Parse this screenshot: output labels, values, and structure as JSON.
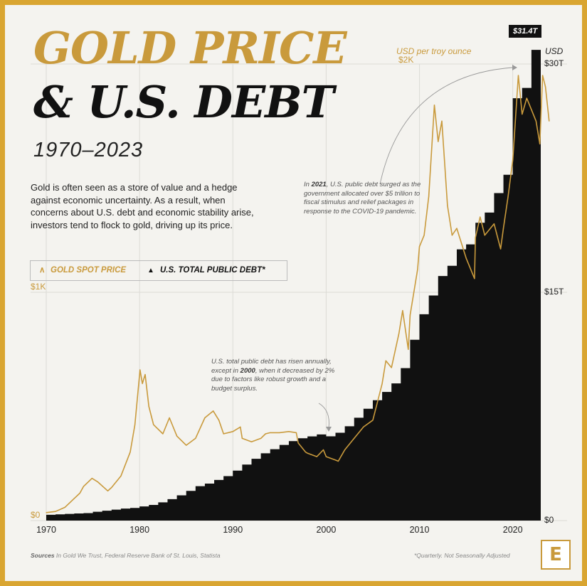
{
  "title": {
    "line1": "GOLD PRICE",
    "line2": "& U.S. DEBT",
    "years": "1970–2023"
  },
  "intro": "Gold is often seen as a store of value and a hedge against economic uncertainty. As a result, when concerns about U.S. debt and economic stability arise, investors tend to flock to gold, driving up its price.",
  "legend": {
    "gold_label": "GOLD SPOT PRICE",
    "gold_icon": "caret-up-icon",
    "debt_label": "U.S. TOTAL PUBLIC DEBT*",
    "debt_icon": "triangle-up-icon"
  },
  "annotations": {
    "note_2021_year": "2021",
    "note_2021": "In 2021, U.S. public debt surged as the government allocated over $5 trillion to fiscal stimulus and relief packages in response to the COVID-19 pandemic.",
    "note_2000_year": "2000",
    "note_2000": "U.S. total public debt has risen annually, except in 2000, when it decreased by 2% due to factors like robust growth and a budget surplus.",
    "callout_value": "$31.4T"
  },
  "footer": {
    "sources_label": "Sources",
    "sources_text": "In Gold We Trust, Federal Reserve Bank of St. Louis, Statista",
    "footnote": "*Quarterly. Not Seasonally Adjusted",
    "logo_letter": "E"
  },
  "colors": {
    "gold": "#c99a3c",
    "debt": "#111111",
    "background": "#f4f3ef",
    "border": "#d9a531"
  },
  "chart_data": {
    "type": "area",
    "x_unit": "year",
    "xlim": [
      1970,
      2023
    ],
    "x_ticks": [
      "1970",
      "1980",
      "1990",
      "2000",
      "2010",
      "2020"
    ],
    "y_left": {
      "unit": "USD per troy ounce",
      "ticks": [
        "$0",
        "$1K",
        "$2K"
      ],
      "range": [
        0,
        2000
      ]
    },
    "y_right": {
      "unit": "USD",
      "ticks": [
        "$0",
        "$15T",
        "$30T"
      ],
      "range": [
        0,
        30
      ]
    },
    "series": [
      {
        "name": "GOLD SPOT PRICE",
        "type": "line",
        "axis": "left",
        "color": "#c99a3c",
        "x": [
          1970,
          1971,
          1972,
          1973,
          1973.6,
          1974,
          1974.9,
          1975.5,
          1976.6,
          1977,
          1978,
          1979,
          1979.5,
          1980.05,
          1980.3,
          1980.6,
          1981,
          1981.5,
          1982.5,
          1983.2,
          1984,
          1985,
          1986,
          1987,
          1987.9,
          1988.5,
          1989,
          1990,
          1990.8,
          1991,
          1992,
          1993,
          1993.5,
          1994,
          1995,
          1996,
          1996.8,
          1997,
          1997.8,
          1998,
          1999,
          1999.7,
          2000,
          2001,
          2001.3,
          2002,
          2003,
          2004,
          2005,
          2006,
          2006.4,
          2007,
          2007.8,
          2008.2,
          2008.8,
          2009,
          2009.8,
          2010,
          2010.5,
          2011,
          2011.6,
          2012,
          2012.4,
          2013,
          2013.5,
          2014,
          2015,
          2015.9,
          2016,
          2016.5,
          2017,
          2018,
          2018.7,
          2019,
          2019.5,
          2020,
          2020.6,
          2021,
          2021.5,
          2022,
          2022.5,
          2022.9,
          2023.2,
          2023.5,
          2023.9
        ],
        "y": [
          35,
          40,
          58,
          97,
          120,
          150,
          185,
          170,
          130,
          145,
          195,
          300,
          420,
          660,
          600,
          640,
          500,
          420,
          380,
          450,
          370,
          330,
          360,
          450,
          480,
          440,
          380,
          390,
          410,
          360,
          345,
          360,
          380,
          385,
          385,
          390,
          385,
          340,
          300,
          295,
          280,
          310,
          280,
          265,
          260,
          310,
          360,
          410,
          440,
          600,
          700,
          670,
          820,
          920,
          750,
          900,
          1100,
          1200,
          1250,
          1420,
          1820,
          1660,
          1750,
          1380,
          1250,
          1280,
          1150,
          1060,
          1240,
          1330,
          1250,
          1300,
          1190,
          1280,
          1420,
          1580,
          1950,
          1780,
          1850,
          1800,
          1750,
          1650,
          1950,
          1900,
          1750
        ]
      },
      {
        "name": "U.S. TOTAL PUBLIC DEBT*",
        "type": "step-area",
        "axis": "right",
        "color": "#111111",
        "x": [
          1970,
          1971,
          1972,
          1973,
          1974,
          1975,
          1976,
          1977,
          1978,
          1979,
          1980,
          1981,
          1982,
          1983,
          1984,
          1985,
          1986,
          1987,
          1988,
          1989,
          1990,
          1991,
          1992,
          1993,
          1994,
          1995,
          1996,
          1997,
          1998,
          1999,
          2000,
          2001,
          2002,
          2003,
          2004,
          2005,
          2006,
          2007,
          2008,
          2009,
          2010,
          2011,
          2012,
          2013,
          2014,
          2015,
          2016,
          2017,
          2018,
          2019,
          2020,
          2021,
          2022,
          2023
        ],
        "y": [
          0.38,
          0.41,
          0.44,
          0.47,
          0.49,
          0.58,
          0.65,
          0.72,
          0.79,
          0.83,
          0.93,
          1.03,
          1.2,
          1.41,
          1.66,
          1.95,
          2.26,
          2.43,
          2.67,
          2.92,
          3.28,
          3.68,
          4.06,
          4.42,
          4.69,
          4.97,
          5.22,
          5.41,
          5.53,
          5.66,
          5.54,
          5.77,
          6.2,
          6.76,
          7.35,
          7.91,
          8.45,
          9.01,
          10.02,
          11.88,
          13.56,
          14.79,
          16.07,
          16.74,
          17.82,
          18.15,
          19.57,
          20.24,
          21.52,
          22.72,
          27.75,
          28.43,
          30.93,
          31.4
        ]
      }
    ]
  }
}
